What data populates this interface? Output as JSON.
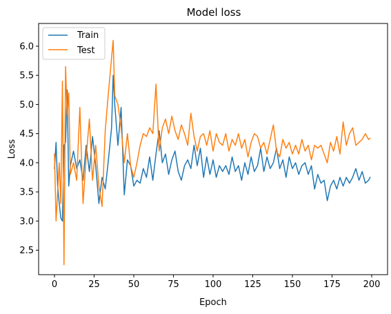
{
  "chart_data": {
    "type": "line",
    "title": "Model loss",
    "xlabel": "Epoch",
    "ylabel": "Loss",
    "xlim": [
      -10,
      210
    ],
    "ylim": [
      2.08,
      6.39
    ],
    "xticks": [
      0,
      25,
      50,
      75,
      100,
      125,
      150,
      175,
      200
    ],
    "yticks": [
      2.5,
      3.0,
      3.5,
      4.0,
      4.5,
      5.0,
      5.5,
      6.0
    ],
    "xtick_labels": [
      "0",
      "25",
      "50",
      "75",
      "100",
      "125",
      "150",
      "175",
      "200"
    ],
    "ytick_labels": [
      "2.5",
      "3.0",
      "3.5",
      "4.0",
      "4.5",
      "5.0",
      "5.5",
      "6.0"
    ],
    "grid": false,
    "legend": "upper-left",
    "series": [
      {
        "name": "Train",
        "color": "#1f77b4",
        "x": [
          0,
          1,
          2,
          3,
          4,
          5,
          6,
          7,
          8,
          9,
          10,
          12,
          14,
          16,
          18,
          20,
          22,
          24,
          26,
          28,
          30,
          32,
          34,
          36,
          37,
          38,
          40,
          42,
          44,
          46,
          48,
          50,
          52,
          54,
          56,
          58,
          60,
          62,
          64,
          66,
          68,
          70,
          72,
          74,
          76,
          78,
          80,
          82,
          84,
          86,
          88,
          90,
          92,
          94,
          96,
          98,
          100,
          102,
          104,
          106,
          108,
          110,
          112,
          114,
          116,
          118,
          120,
          122,
          124,
          126,
          128,
          130,
          132,
          134,
          136,
          138,
          140,
          142,
          144,
          146,
          148,
          150,
          152,
          154,
          156,
          158,
          160,
          162,
          164,
          166,
          168,
          170,
          172,
          174,
          176,
          178,
          180,
          182,
          184,
          186,
          188,
          190,
          192,
          194,
          196,
          198,
          199
        ],
        "y": [
          3.9,
          4.35,
          3.6,
          3.3,
          3.05,
          3.0,
          4.3,
          4.35,
          5.25,
          3.6,
          3.95,
          4.2,
          3.9,
          4.05,
          3.7,
          4.3,
          3.85,
          4.45,
          3.95,
          3.3,
          3.75,
          3.55,
          4.05,
          4.6,
          5.5,
          5.0,
          4.3,
          4.95,
          3.45,
          4.05,
          3.95,
          3.6,
          3.7,
          3.65,
          3.9,
          3.75,
          4.1,
          3.7,
          4.15,
          4.55,
          4.0,
          4.15,
          3.8,
          4.05,
          4.2,
          3.85,
          3.7,
          3.95,
          4.05,
          3.9,
          4.3,
          3.95,
          4.25,
          3.75,
          4.1,
          3.8,
          4.05,
          3.75,
          3.95,
          3.85,
          3.95,
          3.8,
          4.1,
          3.85,
          3.95,
          3.7,
          4.0,
          3.8,
          4.1,
          3.85,
          3.95,
          4.25,
          3.85,
          4.1,
          3.9,
          4.0,
          4.25,
          3.9,
          4.05,
          3.75,
          4.1,
          3.9,
          4.0,
          3.8,
          3.95,
          4.0,
          3.8,
          3.95,
          3.55,
          3.8,
          3.65,
          3.7,
          3.35,
          3.6,
          3.7,
          3.55,
          3.75,
          3.6,
          3.75,
          3.65,
          3.75,
          3.9,
          3.7,
          3.85,
          3.65,
          3.7,
          3.75
        ]
      },
      {
        "name": "Test",
        "color": "#ff7f0e",
        "x": [
          0,
          1,
          2,
          3,
          4,
          5,
          6,
          7,
          8,
          9,
          10,
          12,
          14,
          16,
          18,
          20,
          22,
          24,
          26,
          28,
          30,
          32,
          34,
          36,
          37,
          38,
          40,
          42,
          44,
          46,
          48,
          50,
          52,
          54,
          56,
          58,
          60,
          62,
          64,
          66,
          68,
          70,
          72,
          74,
          76,
          78,
          80,
          82,
          84,
          86,
          88,
          90,
          92,
          94,
          96,
          98,
          100,
          102,
          104,
          106,
          108,
          110,
          112,
          114,
          116,
          118,
          120,
          122,
          124,
          126,
          128,
          130,
          132,
          134,
          136,
          138,
          140,
          142,
          144,
          146,
          148,
          150,
          152,
          154,
          156,
          158,
          160,
          162,
          164,
          166,
          168,
          170,
          172,
          174,
          176,
          178,
          180,
          182,
          184,
          186,
          188,
          190,
          192,
          194,
          196,
          198,
          199
        ],
        "y": [
          4.15,
          3.0,
          3.5,
          4.0,
          3.3,
          5.4,
          2.25,
          5.65,
          4.8,
          5.2,
          3.8,
          4.0,
          3.7,
          4.95,
          3.3,
          4.1,
          4.75,
          3.7,
          4.3,
          3.6,
          3.25,
          4.55,
          5.2,
          5.8,
          6.1,
          5.15,
          5.0,
          4.6,
          4.0,
          4.5,
          3.95,
          3.75,
          4.0,
          4.3,
          4.5,
          4.45,
          4.6,
          4.5,
          5.35,
          4.2,
          4.6,
          4.75,
          4.5,
          4.8,
          4.55,
          4.4,
          4.65,
          4.5,
          4.3,
          4.85,
          4.45,
          4.2,
          4.45,
          4.5,
          4.3,
          4.55,
          4.2,
          4.5,
          4.35,
          4.3,
          4.5,
          4.2,
          4.4,
          4.3,
          4.5,
          4.25,
          4.4,
          4.1,
          4.35,
          4.5,
          4.45,
          4.25,
          4.35,
          4.15,
          4.4,
          4.65,
          4.2,
          4.1,
          4.4,
          4.25,
          4.35,
          4.15,
          4.3,
          4.15,
          4.4,
          4.2,
          4.3,
          4.05,
          4.3,
          4.25,
          4.3,
          4.15,
          4.0,
          4.35,
          4.2,
          4.45,
          4.15,
          4.7,
          4.3,
          4.5,
          4.6,
          4.3,
          4.35,
          4.4,
          4.5,
          4.4,
          4.42
        ]
      }
    ]
  }
}
